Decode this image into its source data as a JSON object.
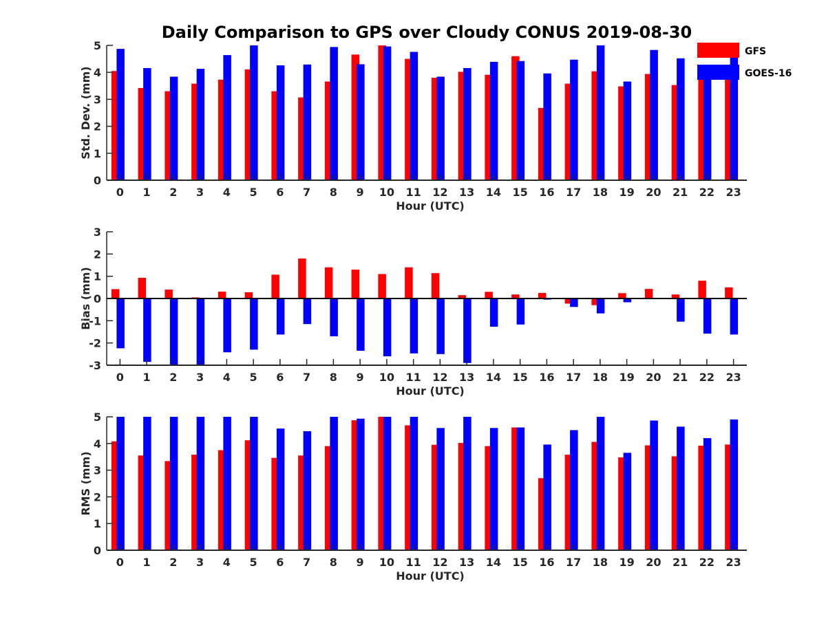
{
  "title": "Daily Comparison to GPS over Cloudy CONUS 2019-08-30",
  "colors": {
    "GFS": "#ff0000",
    "GOES-16": "#0000ff",
    "axis": "#262626"
  },
  "legend": {
    "placement": "top-right",
    "entries": [
      "GFS",
      "GOES-16"
    ]
  },
  "chart_data": [
    {
      "type": "bar",
      "xlabel": "Hour (UTC)",
      "ylabel": "Std. Dev. (mm)",
      "ylim": [
        0,
        5
      ],
      "yticks": [
        "0",
        "1",
        "2",
        "3",
        "4",
        "5"
      ],
      "categories": [
        "0",
        "1",
        "2",
        "3",
        "4",
        "5",
        "6",
        "7",
        "8",
        "9",
        "10",
        "11",
        "12",
        "13",
        "14",
        "15",
        "16",
        "17",
        "18",
        "19",
        "20",
        "21",
        "22",
        "23"
      ],
      "series": [
        {
          "name": "GFS",
          "values": [
            4.05,
            3.42,
            3.3,
            3.58,
            3.73,
            4.11,
            3.3,
            3.07,
            3.66,
            4.66,
            5.0,
            4.5,
            3.8,
            4.02,
            3.91,
            4.6,
            2.68,
            3.58,
            4.04,
            3.48,
            3.94,
            3.53,
            3.86,
            3.8
          ]
        },
        {
          "name": "GOES-16",
          "values": [
            4.87,
            4.16,
            3.84,
            4.13,
            4.64,
            5.0,
            4.26,
            4.29,
            4.94,
            4.3,
            4.96,
            4.76,
            3.84,
            4.16,
            4.39,
            4.42,
            3.96,
            4.47,
            5.0,
            3.66,
            4.83,
            4.52,
            3.84,
            4.6
          ]
        }
      ]
    },
    {
      "type": "bar",
      "xlabel": "Hour (UTC)",
      "ylabel": "Bias (mm)",
      "ylim": [
        -3,
        3
      ],
      "yticks": [
        "-3",
        "-2",
        "-1",
        "0",
        "1",
        "2",
        "3"
      ],
      "categories": [
        "0",
        "1",
        "2",
        "3",
        "4",
        "5",
        "6",
        "7",
        "8",
        "9",
        "10",
        "11",
        "12",
        "13",
        "14",
        "15",
        "16",
        "17",
        "18",
        "19",
        "20",
        "21",
        "22",
        "23"
      ],
      "series": [
        {
          "name": "GFS",
          "values": [
            0.42,
            0.93,
            0.4,
            0.05,
            0.31,
            0.28,
            1.07,
            1.8,
            1.4,
            1.3,
            1.1,
            1.4,
            1.14,
            0.15,
            0.3,
            0.18,
            0.25,
            -0.23,
            -0.3,
            0.24,
            0.43,
            0.18,
            0.8,
            0.5
          ]
        },
        {
          "name": "GOES-16",
          "values": [
            -2.24,
            -2.85,
            -3.0,
            -3.0,
            -2.42,
            -2.3,
            -1.62,
            -1.15,
            -1.7,
            -2.35,
            -2.6,
            -2.47,
            -2.5,
            -2.9,
            -1.27,
            -1.17,
            -0.05,
            -0.38,
            -0.67,
            -0.17,
            0.02,
            -1.04,
            -1.58,
            -1.62
          ]
        }
      ]
    },
    {
      "type": "bar",
      "xlabel": "Hour (UTC)",
      "ylabel": "RMS (mm)",
      "ylim": [
        0,
        5
      ],
      "yticks": [
        "0",
        "1",
        "2",
        "3",
        "4",
        "5"
      ],
      "categories": [
        "0",
        "1",
        "2",
        "3",
        "4",
        "5",
        "6",
        "7",
        "8",
        "9",
        "10",
        "11",
        "12",
        "13",
        "14",
        "15",
        "16",
        "17",
        "18",
        "19",
        "20",
        "21",
        "22",
        "23"
      ],
      "series": [
        {
          "name": "GFS",
          "values": [
            4.08,
            3.55,
            3.34,
            3.58,
            3.75,
            4.12,
            3.46,
            3.55,
            3.9,
            4.87,
            5.0,
            4.68,
            3.95,
            4.02,
            3.9,
            4.6,
            2.7,
            3.58,
            4.06,
            3.48,
            3.93,
            3.52,
            3.92,
            3.96
          ]
        },
        {
          "name": "GOES-16",
          "values": [
            5.0,
            5.0,
            5.0,
            5.0,
            5.0,
            5.0,
            4.56,
            4.46,
            5.0,
            4.93,
            5.0,
            5.0,
            4.58,
            5.0,
            4.58,
            4.6,
            3.96,
            4.5,
            5.0,
            3.65,
            4.86,
            4.63,
            4.2,
            4.9
          ]
        }
      ]
    }
  ]
}
